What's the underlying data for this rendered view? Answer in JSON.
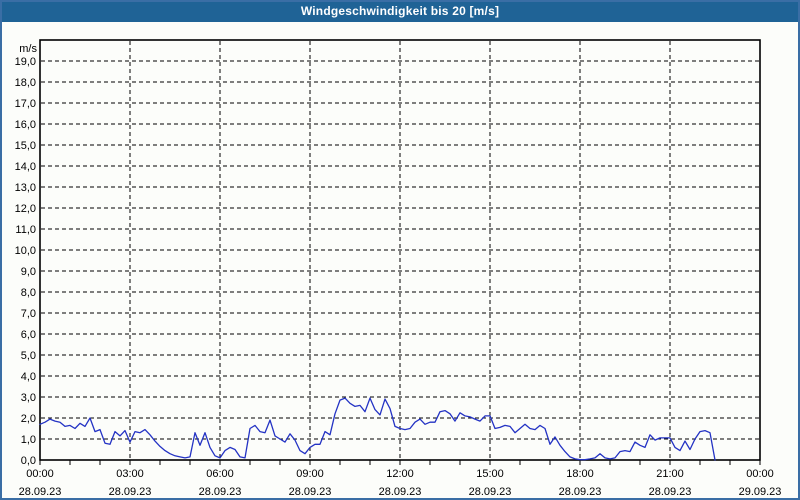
{
  "window": {
    "title": "Windgeschwindigkeit bis 20 [m/s]"
  },
  "colors": {
    "title_bar_bg": "#1F6396",
    "title_text": "#FFFFFF",
    "window_border": "#3A6EA5",
    "page_bg": "#FCFDFA",
    "axis": "#000000",
    "grid": "#000000",
    "line": "#2433C4"
  },
  "chart_data": {
    "type": "line",
    "title": "Windgeschwindigkeit bis 20 [m/s]",
    "ylabel_unit": "m/s",
    "ylim": [
      0,
      20
    ],
    "y_tick_step": 1,
    "y_tick_labels": [
      "0,0",
      "1,0",
      "2,0",
      "3,0",
      "4,0",
      "5,0",
      "6,0",
      "7,0",
      "8,0",
      "9,0",
      "10,0",
      "11,0",
      "12,0",
      "13,0",
      "14,0",
      "15,0",
      "16,0",
      "17,0",
      "18,0",
      "19,0"
    ],
    "xlim_hours": [
      0,
      24
    ],
    "x_minor_tick_hours": 1,
    "grid_style": "dashed",
    "legend": "none",
    "x_major_ticks": [
      {
        "hour": 0,
        "time": "00:00",
        "date": "28.09.23"
      },
      {
        "hour": 3,
        "time": "03:00",
        "date": "28.09.23"
      },
      {
        "hour": 6,
        "time": "06:00",
        "date": "28.09.23"
      },
      {
        "hour": 9,
        "time": "09:00",
        "date": "28.09.23"
      },
      {
        "hour": 12,
        "time": "12:00",
        "date": "28.09.23"
      },
      {
        "hour": 15,
        "time": "15:00",
        "date": "28.09.23"
      },
      {
        "hour": 18,
        "time": "18:00",
        "date": "28.09.23"
      },
      {
        "hour": 21,
        "time": "21:00",
        "date": "28.09.23"
      },
      {
        "hour": 24,
        "time": "00:00",
        "date": "29.09.23"
      }
    ],
    "series": [
      {
        "name": "Windgeschwindigkeit",
        "start_hour": 0,
        "step_minutes": 10,
        "values": [
          1.7,
          1.8,
          1.95,
          1.85,
          1.8,
          1.6,
          1.65,
          1.5,
          1.75,
          1.6,
          2.0,
          1.35,
          1.45,
          0.8,
          0.75,
          1.35,
          1.15,
          1.4,
          0.85,
          1.35,
          1.3,
          1.45,
          1.2,
          0.9,
          0.65,
          0.45,
          0.3,
          0.2,
          0.15,
          0.1,
          0.15,
          1.3,
          0.7,
          1.3,
          0.6,
          0.2,
          0.1,
          0.45,
          0.6,
          0.5,
          0.15,
          0.1,
          1.5,
          1.65,
          1.35,
          1.3,
          1.9,
          1.15,
          1.0,
          0.85,
          1.25,
          0.95,
          0.45,
          0.3,
          0.6,
          0.75,
          0.75,
          1.35,
          1.2,
          2.2,
          2.85,
          2.95,
          2.7,
          2.55,
          2.6,
          2.3,
          2.95,
          2.4,
          2.15,
          2.9,
          2.45,
          1.6,
          1.5,
          1.45,
          1.5,
          1.8,
          1.95,
          1.7,
          1.8,
          1.8,
          2.3,
          2.35,
          2.2,
          1.85,
          2.25,
          2.1,
          2.05,
          1.95,
          1.85,
          2.1,
          2.1,
          1.5,
          1.55,
          1.65,
          1.6,
          1.3,
          1.5,
          1.7,
          1.5,
          1.45,
          1.65,
          1.5,
          0.75,
          1.1,
          0.7,
          0.4,
          0.15,
          0.05,
          0.02,
          0.02,
          0.05,
          0.1,
          0.3,
          0.1,
          0.05,
          0.1,
          0.4,
          0.45,
          0.4,
          0.85,
          0.7,
          0.6,
          1.2,
          0.95,
          1.05,
          1.05,
          1.05,
          0.6,
          0.45,
          0.9,
          0.5,
          1.0,
          1.35,
          1.4,
          1.3,
          0.0
        ]
      }
    ]
  }
}
